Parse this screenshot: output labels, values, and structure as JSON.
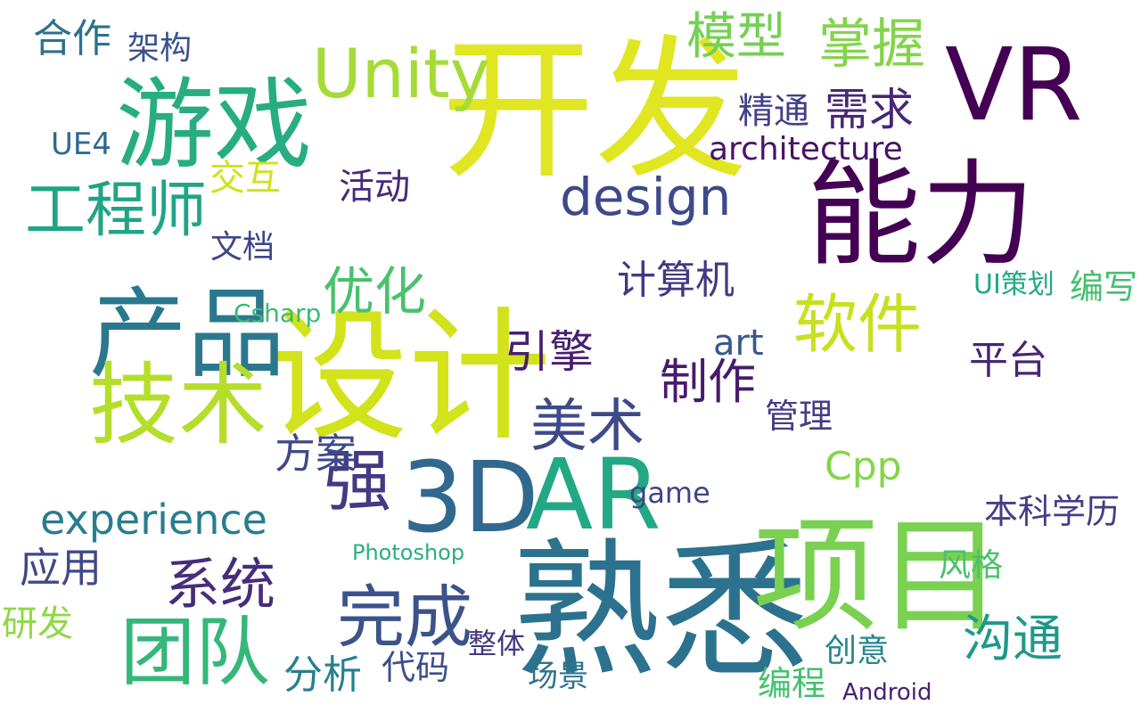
{
  "word_cloud": {
    "words": [
      {
        "text": "开发",
        "color": "#e0e622"
      },
      {
        "text": "设计",
        "color": "#d2e21b"
      },
      {
        "text": "熟悉",
        "color": "#2c728e"
      },
      {
        "text": "项目",
        "color": "#7ad151"
      },
      {
        "text": "能力",
        "color": "#440154"
      },
      {
        "text": "游戏",
        "color": "#27ad81"
      },
      {
        "text": "产品",
        "color": "#2a788e"
      },
      {
        "text": "技术",
        "color": "#b5de2b"
      },
      {
        "text": "Unity",
        "color": "#a5db36"
      },
      {
        "text": "VR",
        "color": "#440154"
      },
      {
        "text": "3D",
        "color": "#31688e"
      },
      {
        "text": "AR",
        "color": "#22a884"
      },
      {
        "text": "工程师",
        "color": "#20a486"
      },
      {
        "text": "团队",
        "color": "#35b779"
      },
      {
        "text": "系统",
        "color": "#472c7a"
      },
      {
        "text": "完成",
        "color": "#3b528b"
      },
      {
        "text": "强",
        "color": "#443983"
      },
      {
        "text": "软件",
        "color": "#c8e020"
      },
      {
        "text": "美术",
        "color": "#3e4a89"
      },
      {
        "text": "制作",
        "color": "#481a6c"
      },
      {
        "text": "沟通",
        "color": "#1f988b"
      },
      {
        "text": "优化",
        "color": "#4ac16d"
      },
      {
        "text": "design",
        "color": "#3e4989"
      },
      {
        "text": "experience",
        "color": "#287d8e"
      },
      {
        "text": "模型",
        "color": "#75d054"
      },
      {
        "text": "掌握",
        "color": "#84d44b"
      },
      {
        "text": "需求",
        "color": "#482677"
      },
      {
        "text": "Cpp",
        "color": "#86d549"
      },
      {
        "text": "应用",
        "color": "#3e4989"
      },
      {
        "text": "方案",
        "color": "#3e4989"
      },
      {
        "text": "分析",
        "color": "#27808e"
      },
      {
        "text": "研发",
        "color": "#8fd744"
      },
      {
        "text": "引擎",
        "color": "#481f70"
      },
      {
        "text": "计算机",
        "color": "#453882"
      },
      {
        "text": "平台",
        "color": "#482475"
      },
      {
        "text": "合作",
        "color": "#2d708e"
      },
      {
        "text": "架构",
        "color": "#3b528b"
      },
      {
        "text": "精通",
        "color": "#424086"
      },
      {
        "text": "architecture",
        "color": "#481467"
      },
      {
        "text": "交互",
        "color": "#d0e11c"
      },
      {
        "text": "文档",
        "color": "#3f4788"
      },
      {
        "text": "本科学历",
        "color": "#433e85"
      },
      {
        "text": "风格",
        "color": "#4ac16d"
      },
      {
        "text": "编写",
        "color": "#46c06f"
      },
      {
        "text": "art",
        "color": "#38598c"
      },
      {
        "text": "管理",
        "color": "#433e85"
      },
      {
        "text": "代码",
        "color": "#3c4f8a"
      },
      {
        "text": "场景",
        "color": "#2c728e"
      },
      {
        "text": "编程",
        "color": "#44bf70"
      },
      {
        "text": "整体",
        "color": "#453781"
      },
      {
        "text": "创意",
        "color": "#24868e"
      },
      {
        "text": "UE4",
        "color": "#30698e"
      },
      {
        "text": "UI策划",
        "color": "#22a884"
      },
      {
        "text": "Csharp",
        "color": "#3aba76"
      },
      {
        "text": "Photoshop",
        "color": "#29af7f"
      },
      {
        "text": "Android",
        "color": "#482173"
      },
      {
        "text": "game",
        "color": "#414487"
      },
      {
        "text": "活动",
        "color": "#482878"
      }
    ]
  }
}
